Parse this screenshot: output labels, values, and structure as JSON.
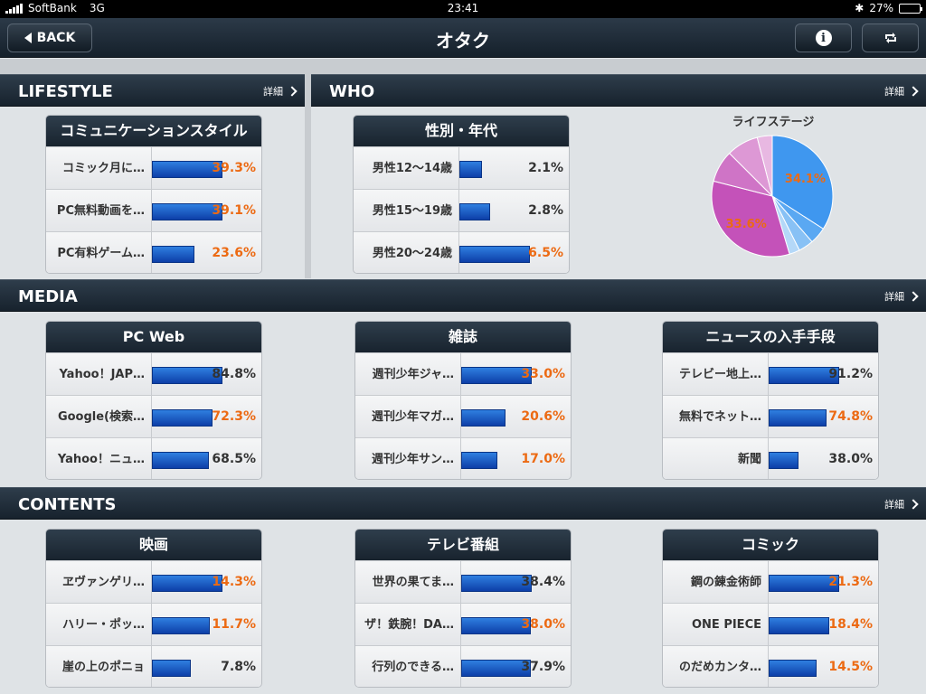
{
  "status": {
    "carrier": "SoftBank",
    "network": "3G",
    "time": "23:41",
    "battery": "27%",
    "battery_level": 0.27
  },
  "nav": {
    "title": "オタク",
    "back_label": "BACK",
    "info_icon": "info-icon",
    "refresh_icon": "refresh-icon"
  },
  "detail_label": "詳細",
  "lifestyle": {
    "title": "LIFESTYLE",
    "card": {
      "title": "コミュニケーションスタイル",
      "rows": [
        {
          "label": "コミック月に…",
          "value": "39.3%",
          "pct": 39.3,
          "highlight": true
        },
        {
          "label": "PC無料動画を…",
          "value": "39.1%",
          "pct": 39.1,
          "highlight": true
        },
        {
          "label": "PC有料ゲーム…",
          "value": "23.6%",
          "pct": 23.6,
          "highlight": true
        }
      ]
    }
  },
  "who": {
    "title": "WHO",
    "card": {
      "title": "性別・年代",
      "rows": [
        {
          "label": "男性12〜14歳",
          "value": "2.1%",
          "pct": 2.1,
          "highlight": false
        },
        {
          "label": "男性15〜19歳",
          "value": "2.8%",
          "pct": 2.8,
          "highlight": false
        },
        {
          "label": "男性20〜24歳",
          "value": "6.5%",
          "pct": 6.5,
          "highlight": true
        }
      ]
    },
    "pie": {
      "title": "ライフステージ",
      "slices": [
        {
          "value": 34.1,
          "label": "34.1%",
          "color": "#3f97ef"
        },
        {
          "value": 4.5,
          "label": "",
          "color": "#5aa8f2"
        },
        {
          "value": 4.0,
          "label": "",
          "color": "#88c1f5"
        },
        {
          "value": 2.8,
          "label": "",
          "color": "#b4d8f8"
        },
        {
          "value": 33.6,
          "label": "33.6%",
          "color": "#c452b9"
        },
        {
          "value": 8.5,
          "label": "",
          "color": "#cf74c6"
        },
        {
          "value": 8.5,
          "label": "",
          "color": "#dd98d5"
        },
        {
          "value": 4.0,
          "label": "",
          "color": "#e8b8e2"
        }
      ]
    }
  },
  "media": {
    "title": "MEDIA",
    "cards": [
      {
        "title": "PC Web",
        "rows": [
          {
            "label": "Yahoo！JAP…",
            "value": "84.8%",
            "pct": 84.8,
            "highlight": false
          },
          {
            "label": "Google(検索…",
            "value": "72.3%",
            "pct": 72.3,
            "highlight": true
          },
          {
            "label": "Yahoo！ニュ…",
            "value": "68.5%",
            "pct": 68.5,
            "highlight": false
          }
        ]
      },
      {
        "title": "雑誌",
        "rows": [
          {
            "label": "週刊少年ジャ…",
            "value": "33.0%",
            "pct": 33.0,
            "highlight": true
          },
          {
            "label": "週刊少年マガ…",
            "value": "20.6%",
            "pct": 20.6,
            "highlight": true
          },
          {
            "label": "週刊少年サン…",
            "value": "17.0%",
            "pct": 17.0,
            "highlight": true
          }
        ]
      },
      {
        "title": "ニュースの入手手段",
        "rows": [
          {
            "label": "テレビー地上…",
            "value": "91.2%",
            "pct": 91.2,
            "highlight": false
          },
          {
            "label": "無料でネット…",
            "value": "74.8%",
            "pct": 74.8,
            "highlight": true
          },
          {
            "label": "新聞",
            "value": "38.0%",
            "pct": 38.0,
            "highlight": false
          }
        ]
      }
    ]
  },
  "contents": {
    "title": "CONTENTS",
    "cards": [
      {
        "title": "映画",
        "rows": [
          {
            "label": "ヱヴァンゲリ…",
            "value": "14.3%",
            "pct": 14.3,
            "highlight": true
          },
          {
            "label": "ハリー・ポッ…",
            "value": "11.7%",
            "pct": 11.7,
            "highlight": true
          },
          {
            "label": "崖の上のポニョ",
            "value": "7.8%",
            "pct": 7.8,
            "highlight": false
          }
        ]
      },
      {
        "title": "テレビ番組",
        "rows": [
          {
            "label": "世界の果てま…",
            "value": "38.4%",
            "pct": 38.4,
            "highlight": false
          },
          {
            "label": "ザ！鉄腕！DA…",
            "value": "38.0%",
            "pct": 38.0,
            "highlight": true
          },
          {
            "label": "行列のできる…",
            "value": "37.9%",
            "pct": 37.9,
            "highlight": false
          }
        ]
      },
      {
        "title": "コミック",
        "rows": [
          {
            "label": "鋼の錬金術師",
            "value": "21.3%",
            "pct": 21.3,
            "highlight": true
          },
          {
            "label": "ONE PIECE",
            "value": "18.4%",
            "pct": 18.4,
            "highlight": true
          },
          {
            "label": "のだめカンタ…",
            "value": "14.5%",
            "pct": 14.5,
            "highlight": true
          }
        ]
      }
    ]
  }
}
